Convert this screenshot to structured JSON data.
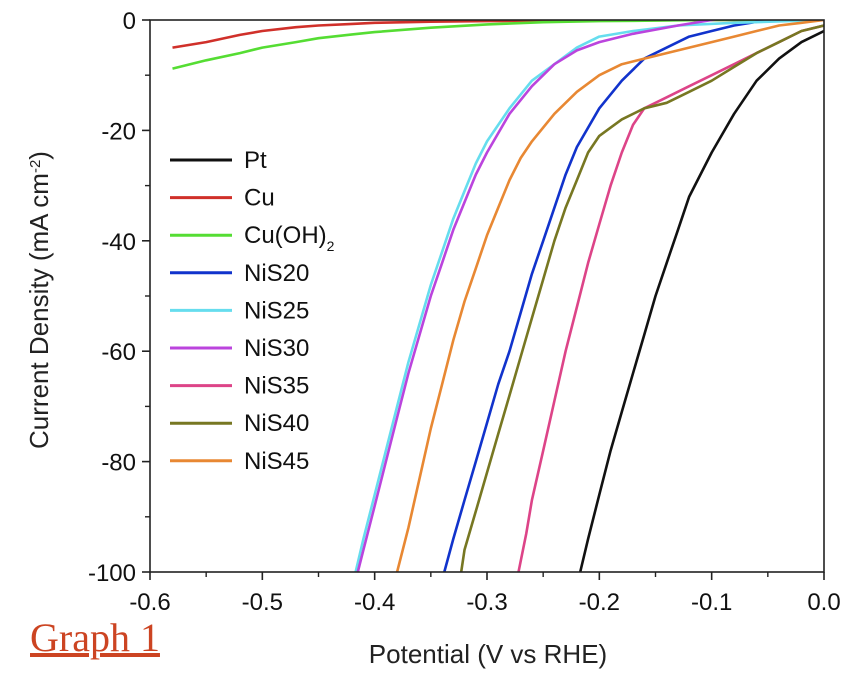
{
  "chart_data": {
    "type": "line",
    "xlabel": "Potential (V vs RHE)",
    "ylabel_main": "Current Density (mA cm",
    "ylabel_sup": "-2",
    "ylabel_close": ")",
    "xlim": [
      -0.6,
      0.0
    ],
    "ylim": [
      -100,
      0
    ],
    "xticks": [
      -0.6,
      -0.5,
      -0.4,
      -0.3,
      -0.2,
      -0.1,
      0.0
    ],
    "xtick_labels": [
      "-0.6",
      "-0.5",
      "-0.4",
      "-0.3",
      "-0.2",
      "-0.1",
      "0.0"
    ],
    "yticks": [
      0,
      -20,
      -40,
      -60,
      -80,
      -100
    ],
    "ytick_labels": [
      "0",
      "-20",
      "-40",
      "-60",
      "-80",
      "-100"
    ],
    "legend_position": "left",
    "series": [
      {
        "name": "Pt",
        "color": "#111111",
        "points": [
          [
            -0.217,
            -100
          ],
          [
            -0.21,
            -94
          ],
          [
            -0.2,
            -86
          ],
          [
            -0.19,
            -78
          ],
          [
            -0.18,
            -71
          ],
          [
            -0.17,
            -64
          ],
          [
            -0.16,
            -57
          ],
          [
            -0.15,
            -50
          ],
          [
            -0.14,
            -44
          ],
          [
            -0.13,
            -38
          ],
          [
            -0.12,
            -32
          ],
          [
            -0.1,
            -24
          ],
          [
            -0.08,
            -17
          ],
          [
            -0.06,
            -11
          ],
          [
            -0.04,
            -7
          ],
          [
            -0.02,
            -4
          ],
          [
            0.0,
            -2
          ]
        ]
      },
      {
        "name": "Cu",
        "color": "#d0302a",
        "points": [
          [
            -0.58,
            -5
          ],
          [
            -0.55,
            -4
          ],
          [
            -0.52,
            -2.7
          ],
          [
            -0.5,
            -2
          ],
          [
            -0.47,
            -1.3
          ],
          [
            -0.45,
            -1
          ],
          [
            -0.42,
            -0.7
          ],
          [
            -0.4,
            -0.5
          ],
          [
            -0.35,
            -0.3
          ],
          [
            -0.3,
            -0.2
          ],
          [
            -0.2,
            -0.1
          ],
          [
            -0.1,
            0
          ],
          [
            0.0,
            0
          ]
        ]
      },
      {
        "name": "Cu(OH)",
        "name_sub": "2",
        "color": "#55dd33",
        "points": [
          [
            -0.58,
            -8.8
          ],
          [
            -0.55,
            -7.3
          ],
          [
            -0.52,
            -6
          ],
          [
            -0.5,
            -5
          ],
          [
            -0.47,
            -4
          ],
          [
            -0.45,
            -3.3
          ],
          [
            -0.42,
            -2.6
          ],
          [
            -0.4,
            -2.2
          ],
          [
            -0.35,
            -1.4
          ],
          [
            -0.3,
            -0.8
          ],
          [
            -0.25,
            -0.4
          ],
          [
            -0.2,
            -0.2
          ],
          [
            -0.15,
            -0.1
          ],
          [
            -0.1,
            0
          ],
          [
            0.0,
            0
          ]
        ]
      },
      {
        "name": "NiS20",
        "color": "#1133cc",
        "points": [
          [
            -0.338,
            -100
          ],
          [
            -0.33,
            -94
          ],
          [
            -0.32,
            -87
          ],
          [
            -0.31,
            -80
          ],
          [
            -0.3,
            -73
          ],
          [
            -0.29,
            -66
          ],
          [
            -0.28,
            -60
          ],
          [
            -0.27,
            -53
          ],
          [
            -0.26,
            -46
          ],
          [
            -0.25,
            -40
          ],
          [
            -0.24,
            -34
          ],
          [
            -0.23,
            -28
          ],
          [
            -0.22,
            -23
          ],
          [
            -0.2,
            -16
          ],
          [
            -0.18,
            -11
          ],
          [
            -0.16,
            -7
          ],
          [
            -0.14,
            -5
          ],
          [
            -0.12,
            -3
          ],
          [
            -0.1,
            -2
          ],
          [
            -0.08,
            -1
          ],
          [
            -0.05,
            0
          ],
          [
            0.0,
            0
          ]
        ]
      },
      {
        "name": "NiS25",
        "color": "#66ddee",
        "points": [
          [
            -0.417,
            -100
          ],
          [
            -0.41,
            -94
          ],
          [
            -0.4,
            -86
          ],
          [
            -0.39,
            -78
          ],
          [
            -0.38,
            -70
          ],
          [
            -0.37,
            -62
          ],
          [
            -0.36,
            -55
          ],
          [
            -0.35,
            -48
          ],
          [
            -0.34,
            -42
          ],
          [
            -0.33,
            -36
          ],
          [
            -0.32,
            -31
          ],
          [
            -0.31,
            -26
          ],
          [
            -0.3,
            -22
          ],
          [
            -0.28,
            -16
          ],
          [
            -0.26,
            -11
          ],
          [
            -0.24,
            -8
          ],
          [
            -0.22,
            -5
          ],
          [
            -0.2,
            -3
          ],
          [
            -0.17,
            -2
          ],
          [
            -0.13,
            -1
          ],
          [
            -0.08,
            -0.5
          ],
          [
            0.0,
            0
          ]
        ]
      },
      {
        "name": "NiS30",
        "color": "#bb44dd",
        "points": [
          [
            -0.415,
            -100
          ],
          [
            -0.41,
            -96
          ],
          [
            -0.4,
            -88
          ],
          [
            -0.39,
            -80
          ],
          [
            -0.38,
            -72
          ],
          [
            -0.37,
            -64
          ],
          [
            -0.36,
            -57
          ],
          [
            -0.35,
            -50
          ],
          [
            -0.34,
            -44
          ],
          [
            -0.33,
            -38
          ],
          [
            -0.32,
            -33
          ],
          [
            -0.31,
            -28
          ],
          [
            -0.3,
            -24
          ],
          [
            -0.28,
            -17
          ],
          [
            -0.26,
            -12
          ],
          [
            -0.24,
            -8
          ],
          [
            -0.22,
            -5.5
          ],
          [
            -0.2,
            -4
          ],
          [
            -0.17,
            -2.5
          ],
          [
            -0.13,
            -1
          ],
          [
            -0.1,
            0
          ],
          [
            -0.07,
            1
          ],
          [
            -0.04,
            2
          ],
          [
            -0.02,
            1.5
          ],
          [
            0.0,
            0
          ]
        ]
      },
      {
        "name": "NiS35",
        "color": "#dd4488",
        "points": [
          [
            -0.272,
            -100
          ],
          [
            -0.265,
            -93
          ],
          [
            -0.26,
            -87
          ],
          [
            -0.25,
            -78
          ],
          [
            -0.24,
            -69
          ],
          [
            -0.23,
            -60
          ],
          [
            -0.22,
            -52
          ],
          [
            -0.21,
            -44
          ],
          [
            -0.2,
            -37
          ],
          [
            -0.19,
            -30
          ],
          [
            -0.18,
            -24
          ],
          [
            -0.17,
            -19
          ],
          [
            -0.16,
            -16
          ],
          [
            -0.14,
            -14
          ],
          [
            -0.12,
            -12
          ],
          [
            -0.1,
            -10
          ],
          [
            -0.08,
            -8
          ],
          [
            -0.06,
            -6
          ],
          [
            -0.04,
            -4
          ],
          [
            -0.02,
            -2
          ],
          [
            0.0,
            -1
          ]
        ]
      },
      {
        "name": "NiS40",
        "color": "#777722",
        "points": [
          [
            -0.323,
            -100
          ],
          [
            -0.32,
            -96
          ],
          [
            -0.31,
            -89
          ],
          [
            -0.3,
            -82
          ],
          [
            -0.29,
            -75
          ],
          [
            -0.28,
            -68
          ],
          [
            -0.27,
            -61
          ],
          [
            -0.26,
            -54
          ],
          [
            -0.25,
            -47
          ],
          [
            -0.24,
            -40
          ],
          [
            -0.23,
            -34
          ],
          [
            -0.22,
            -29
          ],
          [
            -0.21,
            -24
          ],
          [
            -0.2,
            -21
          ],
          [
            -0.18,
            -18
          ],
          [
            -0.16,
            -16
          ],
          [
            -0.14,
            -15
          ],
          [
            -0.12,
            -13
          ],
          [
            -0.1,
            -11
          ],
          [
            -0.08,
            -8.5
          ],
          [
            -0.06,
            -6
          ],
          [
            -0.04,
            -4
          ],
          [
            -0.02,
            -2
          ],
          [
            0.0,
            -1
          ]
        ]
      },
      {
        "name": "NiS45",
        "color": "#e88833",
        "points": [
          [
            -0.38,
            -100
          ],
          [
            -0.37,
            -92
          ],
          [
            -0.36,
            -83
          ],
          [
            -0.35,
            -74
          ],
          [
            -0.34,
            -66
          ],
          [
            -0.33,
            -58
          ],
          [
            -0.32,
            -51
          ],
          [
            -0.31,
            -45
          ],
          [
            -0.3,
            -39
          ],
          [
            -0.29,
            -34
          ],
          [
            -0.28,
            -29
          ],
          [
            -0.27,
            -25
          ],
          [
            -0.26,
            -22
          ],
          [
            -0.24,
            -17
          ],
          [
            -0.22,
            -13
          ],
          [
            -0.2,
            -10
          ],
          [
            -0.18,
            -8
          ],
          [
            -0.16,
            -7
          ],
          [
            -0.14,
            -6
          ],
          [
            -0.12,
            -5
          ],
          [
            -0.1,
            -4
          ],
          [
            -0.08,
            -3
          ],
          [
            -0.06,
            -2
          ],
          [
            -0.04,
            -1
          ],
          [
            -0.02,
            -0.5
          ],
          [
            0.0,
            0
          ]
        ]
      }
    ]
  },
  "caption": {
    "text": "Graph 1",
    "color": "#cc4422"
  }
}
